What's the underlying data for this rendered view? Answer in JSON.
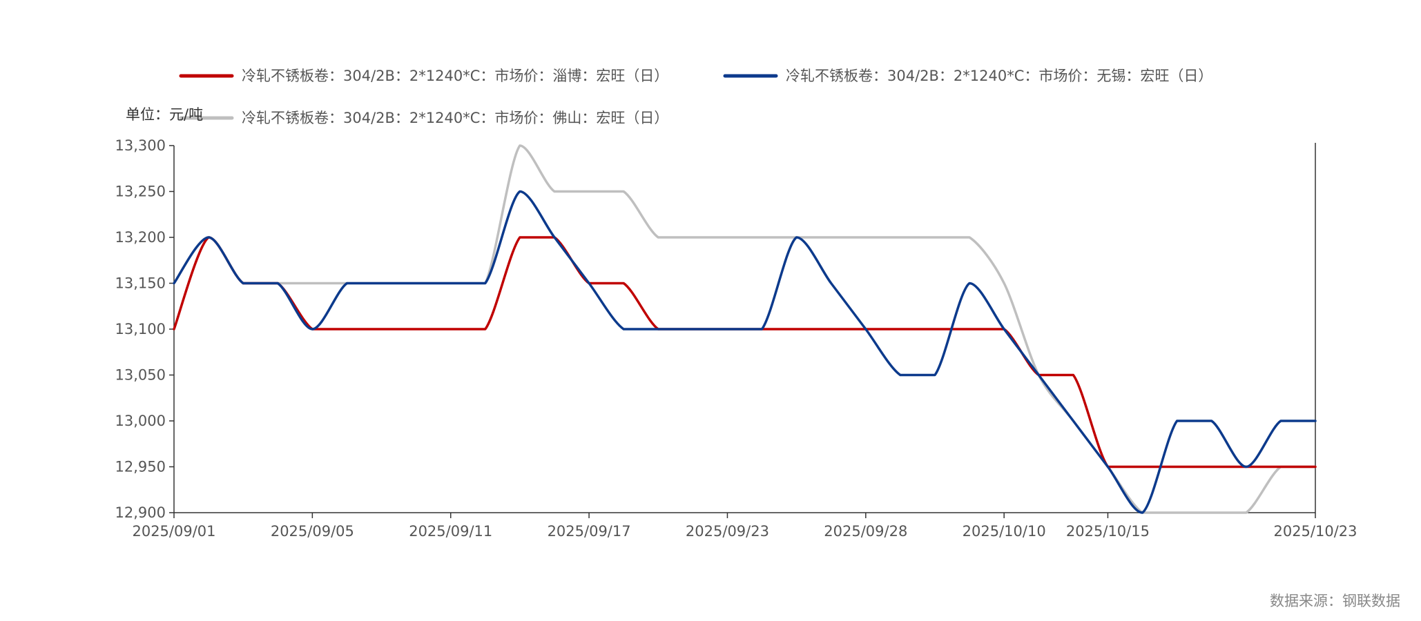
{
  "chart_data": {
    "type": "line",
    "unit_label": "单位：元/吨",
    "source": "数据来源：钢联数据",
    "x": [
      "2025/09/01",
      "2025/09/02",
      "2025/09/03",
      "2025/09/04",
      "2025/09/05",
      "2025/09/08",
      "2025/09/09",
      "2025/09/10",
      "2025/09/11",
      "2025/09/12",
      "2025/09/15",
      "2025/09/16",
      "2025/09/17",
      "2025/09/18",
      "2025/09/19",
      "2025/09/22",
      "2025/09/23",
      "2025/09/24",
      "2025/09/25",
      "2025/09/26",
      "2025/09/28",
      "2025/09/29",
      "2025/09/30",
      "2025/10/09",
      "2025/10/10",
      "2025/10/13",
      "2025/10/14",
      "2025/10/15",
      "2025/10/16",
      "2025/10/17",
      "2025/10/20",
      "2025/10/21",
      "2025/10/22",
      "2025/10/23"
    ],
    "x_tick_labels": [
      "2025/09/01",
      "2025/09/05",
      "2025/09/11",
      "2025/09/17",
      "2025/09/23",
      "2025/09/28",
      "2025/10/10",
      "2025/10/15",
      "2025/10/23"
    ],
    "ylim": [
      12900,
      13300
    ],
    "y_ticks": [
      12900,
      12950,
      13000,
      13050,
      13100,
      13150,
      13200,
      13250,
      13300
    ],
    "y_tick_labels": [
      "12,900",
      "12,950",
      "13,000",
      "13,050",
      "13,100",
      "13,150",
      "13,200",
      "13,250",
      "13,300"
    ],
    "series": [
      {
        "name": "冷轧不锈板卷：304/2B：2*1240*C：市场价：淄博：宏旺（日）",
        "color": "#c00000",
        "values": [
          13100,
          13200,
          13150,
          13150,
          13100,
          13100,
          13100,
          13100,
          13100,
          13100,
          13200,
          13200,
          13150,
          13150,
          13100,
          13100,
          13100,
          13100,
          13100,
          13100,
          13100,
          13100,
          13100,
          13100,
          13100,
          13050,
          13050,
          12950,
          12950,
          12950,
          12950,
          12950,
          12950,
          12950
        ]
      },
      {
        "name": "冷轧不锈板卷：304/2B：2*1240*C：市场价：无锡：宏旺（日）",
        "color": "#0c3a8c",
        "values": [
          13150,
          13200,
          13150,
          13150,
          13100,
          13150,
          13150,
          13150,
          13150,
          13150,
          13250,
          13200,
          13150,
          13100,
          13100,
          13100,
          13100,
          13100,
          13200,
          13150,
          13100,
          13050,
          13050,
          13150,
          13100,
          13050,
          13000,
          12950,
          12900,
          13000,
          13000,
          12950,
          13000,
          13000
        ]
      },
      {
        "name": "冷轧不锈板卷：304/2B：2*1240*C：市场价：佛山：宏旺（日）",
        "color": "#bfbfbf",
        "values": [
          13150,
          13200,
          13150,
          13150,
          13150,
          13150,
          13150,
          13150,
          13150,
          13150,
          13300,
          13250,
          13250,
          13250,
          13200,
          13200,
          13200,
          13200,
          13200,
          13200,
          13200,
          13200,
          13200,
          13200,
          13150,
          13050,
          13000,
          12950,
          12900,
          12900,
          12900,
          12900,
          12950,
          12950
        ]
      }
    ]
  }
}
